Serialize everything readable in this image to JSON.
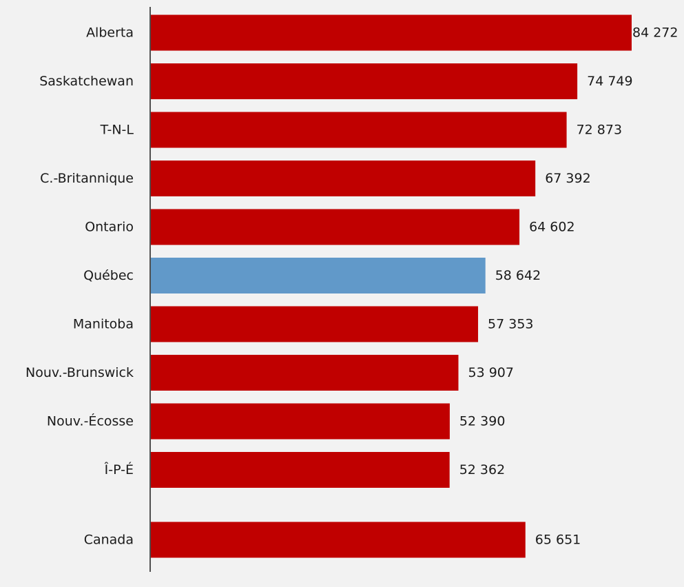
{
  "chart_data": {
    "type": "bar",
    "orientation": "horizontal",
    "categories": [
      "Alberta",
      "Saskatchewan",
      "T-N-L",
      "C.-Britannique",
      "Ontario",
      "Québec",
      "Manitoba",
      "Nouv.-Brunswick",
      "Nouv.-Écosse",
      "Î-P-É",
      "Canada"
    ],
    "values": [
      84272,
      74749,
      72873,
      67392,
      64602,
      58642,
      57353,
      53907,
      52390,
      52362,
      65651
    ],
    "value_labels": [
      "84 272",
      "74 749",
      "72 873",
      "67 392",
      "64 602",
      "58 642",
      "57 353",
      "53 907",
      "52 390",
      "52 362",
      "65 651"
    ],
    "highlight_category": "Québec",
    "colors": {
      "bar": "#c00000",
      "highlight": "#6199c9",
      "background": "#f2f2f2",
      "axis": "#1a1a1a"
    },
    "grid": false,
    "legend": "none",
    "title": "",
    "xlabel": "",
    "ylabel": ""
  }
}
